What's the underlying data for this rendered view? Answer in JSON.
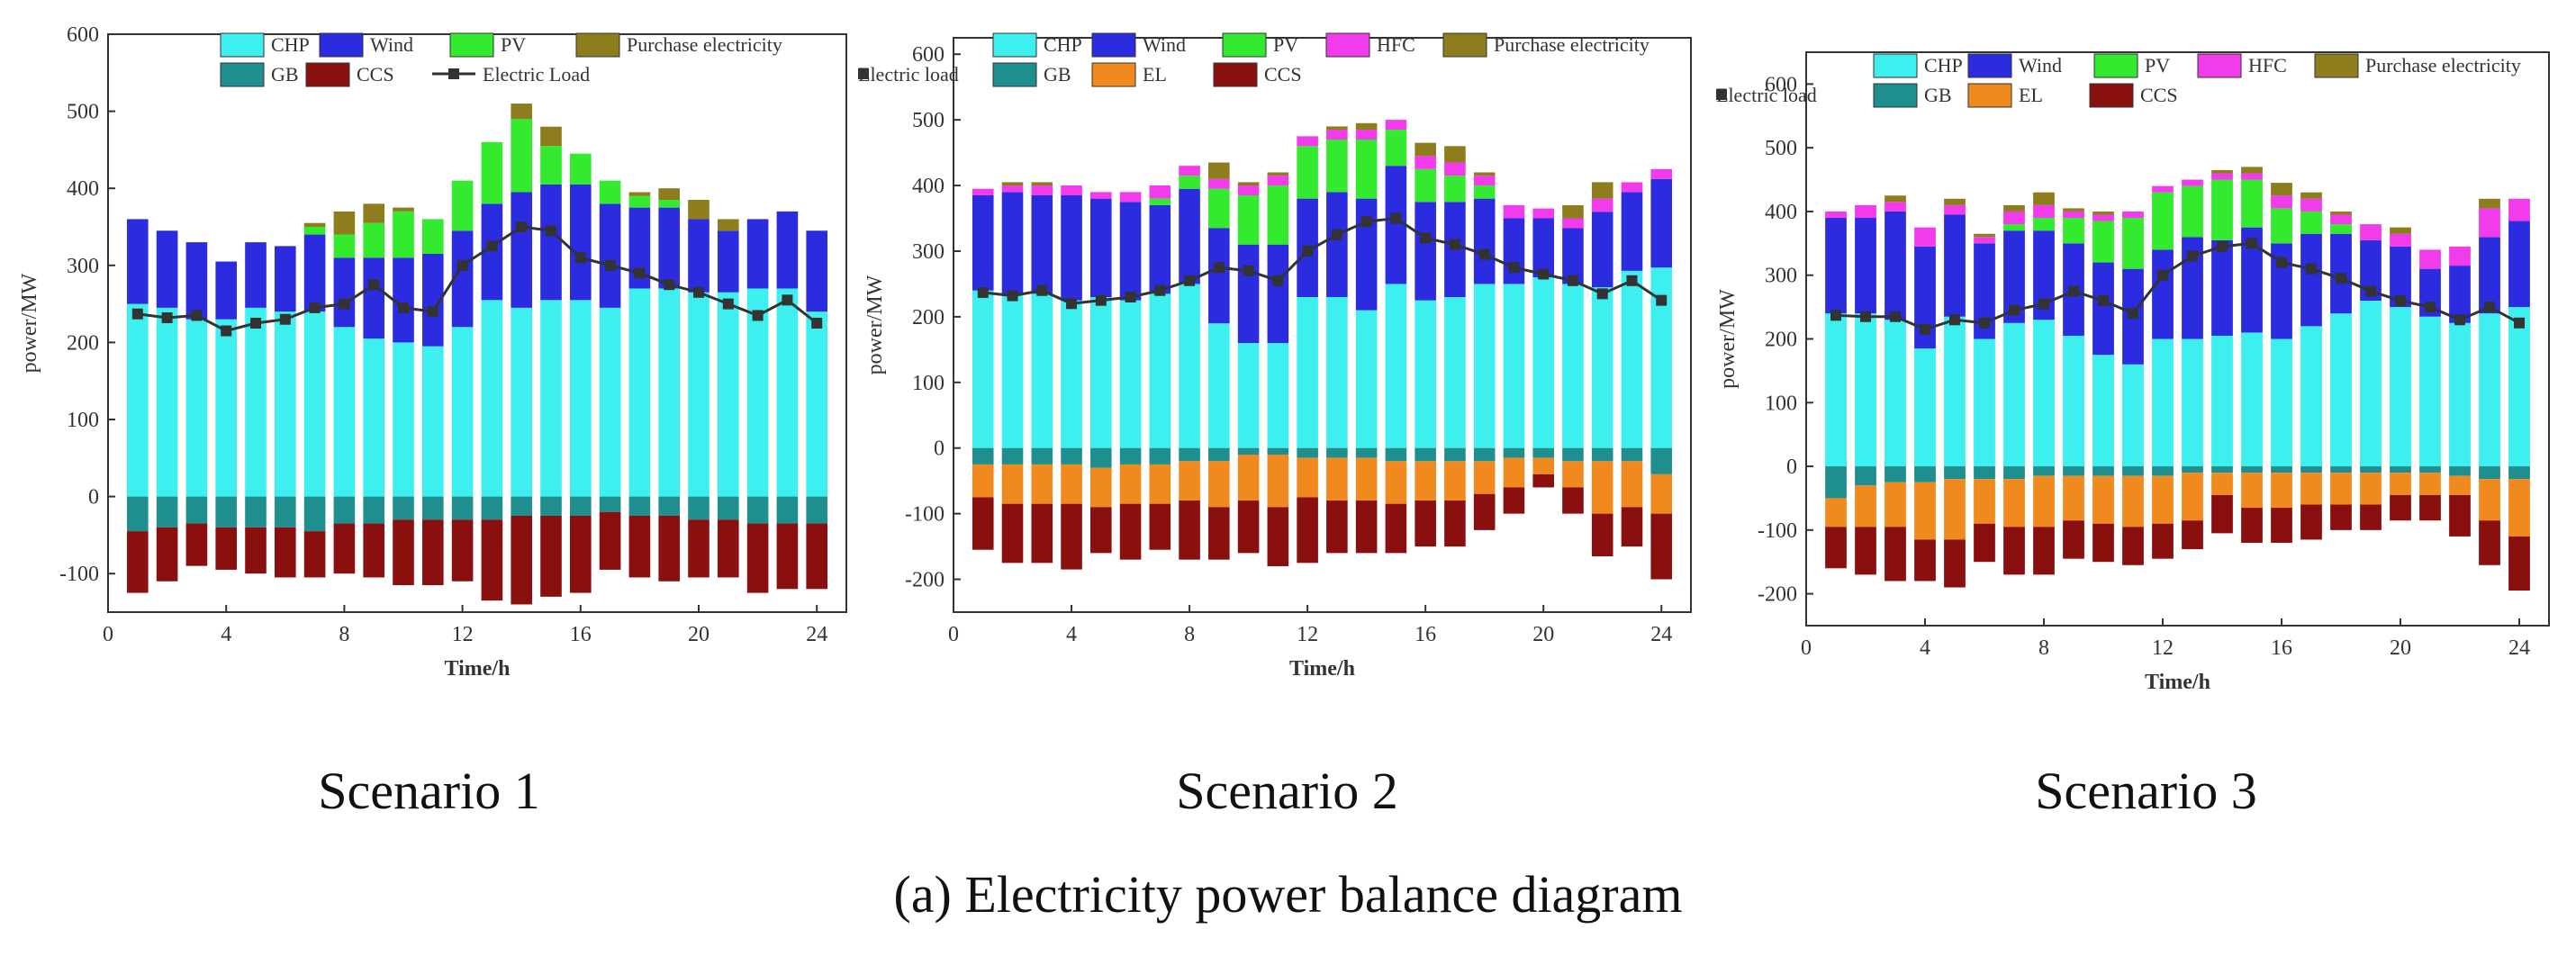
{
  "figure_caption": "(a) Electricity power balance diagram",
  "scenario_labels": [
    "Scenario 1",
    "Scenario 2",
    "Scenario 3"
  ],
  "colors": {
    "CHP": "#3EEFEF",
    "Wind": "#2B2BE0",
    "PV": "#33EA2F",
    "HFC": "#F23BEA",
    "Purchase electricity": "#8D7D1C",
    "GB": "#1E8E8E",
    "EL": "#F08A1E",
    "CCS": "#8A1010",
    "Electric Load": "#333333"
  },
  "chart_data": [
    {
      "type": "bar",
      "stacked": true,
      "title": "",
      "xlabel": "Time/h",
      "ylabel": "power/MW",
      "xlim": [
        0,
        25
      ],
      "ylim": [
        -150,
        600
      ],
      "xticks": [
        0,
        4,
        8,
        12,
        16,
        20,
        24
      ],
      "yticks": [
        -100,
        0,
        100,
        200,
        300,
        400,
        500,
        600
      ],
      "categories": [
        1,
        2,
        3,
        4,
        5,
        6,
        7,
        8,
        9,
        10,
        11,
        12,
        13,
        14,
        15,
        16,
        17,
        18,
        19,
        20,
        21,
        22,
        23,
        24
      ],
      "legend_rows": [
        [
          "CHP",
          "Wind",
          "PV",
          "Purchase electricity"
        ],
        [
          "GB",
          "CCS",
          "Electric Load"
        ]
      ],
      "series": [
        {
          "name": "CHP",
          "values": [
            250,
            245,
            230,
            230,
            245,
            240,
            240,
            220,
            205,
            200,
            195,
            220,
            255,
            245,
            255,
            255,
            245,
            270,
            270,
            265,
            265,
            270,
            270,
            240
          ]
        },
        {
          "name": "Wind",
          "values": [
            110,
            100,
            100,
            75,
            85,
            85,
            100,
            90,
            105,
            110,
            120,
            125,
            125,
            150,
            150,
            150,
            135,
            105,
            105,
            95,
            80,
            90,
            100,
            105
          ]
        },
        {
          "name": "PV",
          "values": [
            0,
            0,
            0,
            0,
            0,
            0,
            10,
            30,
            45,
            60,
            45,
            65,
            80,
            95,
            50,
            40,
            30,
            15,
            10,
            0,
            0,
            0,
            0,
            0
          ]
        },
        {
          "name": "HFC",
          "values": [
            0,
            0,
            0,
            0,
            0,
            0,
            0,
            0,
            0,
            0,
            0,
            0,
            0,
            0,
            0,
            0,
            0,
            0,
            0,
            0,
            0,
            0,
            0,
            0
          ]
        },
        {
          "name": "Purchase electricity",
          "values": [
            0,
            0,
            0,
            0,
            0,
            0,
            5,
            30,
            25,
            5,
            0,
            0,
            0,
            20,
            25,
            0,
            0,
            5,
            15,
            25,
            15,
            0,
            0,
            0
          ]
        },
        {
          "name": "GB",
          "values": [
            -45,
            -40,
            -35,
            -40,
            -40,
            -40,
            -45,
            -35,
            -35,
            -30,
            -30,
            -30,
            -30,
            -25,
            -25,
            -25,
            -20,
            -25,
            -25,
            -30,
            -30,
            -35,
            -35,
            -35
          ]
        },
        {
          "name": "EL",
          "values": [
            0,
            0,
            0,
            0,
            0,
            0,
            0,
            0,
            0,
            0,
            0,
            0,
            0,
            0,
            0,
            0,
            0,
            0,
            0,
            0,
            0,
            0,
            0,
            0
          ]
        },
        {
          "name": "CCS",
          "values": [
            -80,
            -70,
            -55,
            -55,
            -60,
            -65,
            -60,
            -65,
            -70,
            -85,
            -85,
            -80,
            -105,
            -115,
            -105,
            -100,
            -75,
            -80,
            -85,
            -75,
            -75,
            -90,
            -85,
            -85
          ]
        }
      ],
      "line": {
        "name": "Electric Load",
        "values": [
          237,
          232,
          235,
          215,
          225,
          230,
          245,
          250,
          275,
          245,
          240,
          300,
          325,
          350,
          345,
          310,
          300,
          290,
          275,
          265,
          250,
          235,
          255,
          225
        ]
      }
    },
    {
      "type": "bar",
      "stacked": true,
      "title": "",
      "xlabel": "Time/h",
      "ylabel": "power/MW",
      "xlim": [
        0,
        25
      ],
      "ylim": [
        -250,
        625
      ],
      "xticks": [
        0,
        4,
        8,
        12,
        16,
        20,
        24
      ],
      "yticks": [
        -200,
        -100,
        0,
        100,
        200,
        300,
        400,
        500,
        600
      ],
      "categories": [
        1,
        2,
        3,
        4,
        5,
        6,
        7,
        8,
        9,
        10,
        11,
        12,
        13,
        14,
        15,
        16,
        17,
        18,
        19,
        20,
        21,
        22,
        23,
        24
      ],
      "legend_rows": [
        [
          "CHP",
          "Wind",
          "PV",
          "HFC",
          "Purchase electricity"
        ],
        [
          "GB",
          "EL",
          "CCS",
          "Electric load"
        ]
      ],
      "series": [
        {
          "name": "CHP",
          "values": [
            240,
            235,
            235,
            225,
            230,
            225,
            235,
            250,
            190,
            160,
            160,
            230,
            230,
            210,
            250,
            225,
            230,
            250,
            250,
            260,
            250,
            245,
            270,
            275
          ]
        },
        {
          "name": "Wind",
          "values": [
            145,
            155,
            150,
            160,
            150,
            150,
            135,
            145,
            145,
            150,
            150,
            150,
            160,
            170,
            180,
            150,
            145,
            130,
            100,
            90,
            85,
            115,
            120,
            135
          ]
        },
        {
          "name": "PV",
          "values": [
            0,
            0,
            0,
            0,
            0,
            0,
            10,
            20,
            60,
            75,
            90,
            80,
            80,
            90,
            55,
            50,
            40,
            20,
            0,
            0,
            0,
            0,
            0,
            0
          ]
        },
        {
          "name": "HFC",
          "values": [
            10,
            10,
            15,
            15,
            10,
            15,
            20,
            15,
            15,
            15,
            15,
            15,
            15,
            15,
            15,
            20,
            20,
            15,
            20,
            15,
            15,
            20,
            15,
            15
          ]
        },
        {
          "name": "Purchase electricity",
          "values": [
            0,
            5,
            5,
            0,
            0,
            0,
            0,
            0,
            25,
            5,
            5,
            0,
            5,
            10,
            0,
            20,
            25,
            5,
            0,
            0,
            20,
            25,
            0,
            0
          ]
        },
        {
          "name": "GB",
          "values": [
            -25,
            -25,
            -25,
            -25,
            -30,
            -25,
            -25,
            -20,
            -20,
            -10,
            -10,
            -15,
            -15,
            -15,
            -20,
            -20,
            -20,
            -20,
            -15,
            -15,
            -20,
            -20,
            -20,
            -40
          ]
        },
        {
          "name": "EL",
          "values": [
            -50,
            -60,
            -60,
            -60,
            -60,
            -60,
            -60,
            -60,
            -70,
            -70,
            -80,
            -60,
            -65,
            -65,
            -65,
            -60,
            -60,
            -50,
            -45,
            -25,
            -40,
            -80,
            -70,
            -60
          ]
        },
        {
          "name": "CCS",
          "values": [
            -80,
            -90,
            -90,
            -100,
            -70,
            -85,
            -70,
            -90,
            -80,
            -80,
            -90,
            -100,
            -80,
            -80,
            -75,
            -70,
            -70,
            -55,
            -40,
            -20,
            -40,
            -65,
            -60,
            -100
          ]
        }
      ],
      "line": {
        "name": "Electric load",
        "values": [
          237,
          232,
          240,
          220,
          225,
          230,
          240,
          255,
          275,
          270,
          255,
          300,
          325,
          345,
          350,
          320,
          310,
          295,
          275,
          265,
          255,
          235,
          255,
          225
        ]
      }
    },
    {
      "type": "bar",
      "stacked": true,
      "title": "",
      "xlabel": "Time/h",
      "ylabel": "power/MW",
      "xlim": [
        0,
        25
      ],
      "ylim": [
        -250,
        650
      ],
      "xticks": [
        0,
        4,
        8,
        12,
        16,
        20,
        24
      ],
      "yticks": [
        -200,
        -100,
        0,
        100,
        200,
        300,
        400,
        500,
        600
      ],
      "categories": [
        1,
        2,
        3,
        4,
        5,
        6,
        7,
        8,
        9,
        10,
        11,
        12,
        13,
        14,
        15,
        16,
        17,
        18,
        19,
        20,
        21,
        22,
        23,
        24
      ],
      "legend_rows": [
        [
          "CHP",
          "Wind",
          "PV",
          "HFC",
          "Purchase electricity"
        ],
        [
          "GB",
          "EL",
          "CCS",
          "Electric load"
        ]
      ],
      "series": [
        {
          "name": "CHP",
          "values": [
            240,
            240,
            230,
            185,
            235,
            200,
            225,
            230,
            205,
            175,
            160,
            200,
            200,
            205,
            210,
            200,
            220,
            240,
            260,
            250,
            235,
            225,
            240,
            250
          ]
        },
        {
          "name": "Wind",
          "values": [
            150,
            150,
            170,
            160,
            160,
            150,
            145,
            140,
            145,
            145,
            150,
            140,
            160,
            150,
            165,
            150,
            145,
            125,
            95,
            95,
            75,
            90,
            120,
            135
          ]
        },
        {
          "name": "PV",
          "values": [
            0,
            0,
            0,
            0,
            0,
            0,
            10,
            20,
            40,
            65,
            80,
            90,
            80,
            95,
            75,
            55,
            35,
            15,
            0,
            0,
            0,
            0,
            0,
            0
          ]
        },
        {
          "name": "HFC",
          "values": [
            10,
            20,
            15,
            30,
            15,
            10,
            20,
            20,
            10,
            10,
            10,
            10,
            10,
            10,
            10,
            20,
            20,
            15,
            25,
            20,
            30,
            30,
            45,
            35
          ]
        },
        {
          "name": "Purchase electricity",
          "values": [
            0,
            0,
            10,
            0,
            10,
            5,
            10,
            20,
            5,
            5,
            0,
            0,
            0,
            5,
            10,
            20,
            10,
            5,
            0,
            10,
            0,
            0,
            15,
            0
          ]
        },
        {
          "name": "GB",
          "values": [
            -50,
            -30,
            -25,
            -25,
            -20,
            -20,
            -20,
            -15,
            -15,
            -15,
            -15,
            -15,
            -10,
            -10,
            -10,
            -10,
            -10,
            -10,
            -10,
            -10,
            -10,
            -15,
            -20,
            -20
          ]
        },
        {
          "name": "EL",
          "values": [
            -45,
            -65,
            -70,
            -90,
            -95,
            -70,
            -75,
            -80,
            -70,
            -75,
            -80,
            -75,
            -75,
            -35,
            -55,
            -55,
            -50,
            -50,
            -50,
            -35,
            -35,
            -30,
            -65,
            -90
          ]
        },
        {
          "name": "CCS",
          "values": [
            -65,
            -75,
            -85,
            -65,
            -75,
            -60,
            -75,
            -75,
            -60,
            -60,
            -60,
            -55,
            -45,
            -60,
            -55,
            -55,
            -55,
            -40,
            -40,
            -40,
            -40,
            -65,
            -70,
            -85
          ]
        }
      ],
      "line": {
        "name": "Electric load",
        "values": [
          237,
          235,
          235,
          215,
          230,
          225,
          245,
          255,
          275,
          260,
          240,
          300,
          330,
          345,
          350,
          320,
          310,
          295,
          275,
          260,
          250,
          230,
          250,
          225
        ]
      }
    }
  ]
}
